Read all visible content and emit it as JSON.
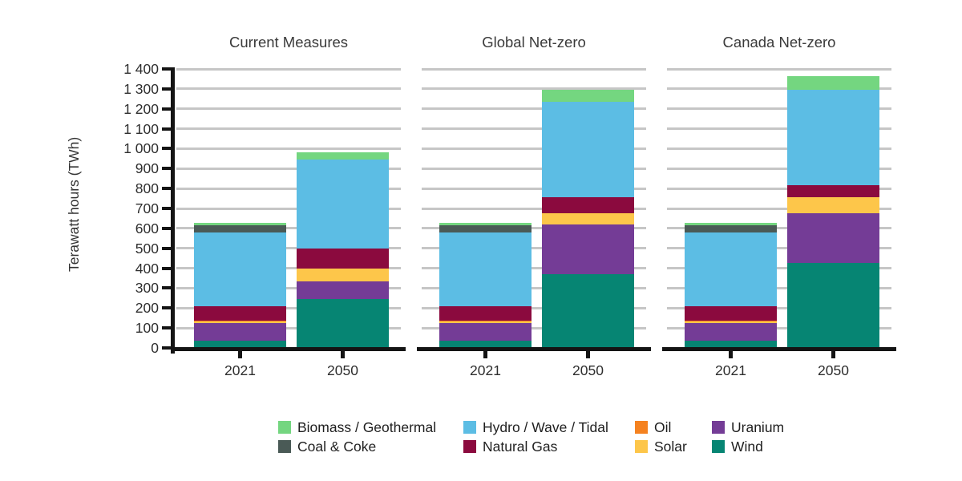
{
  "chart_data": {
    "type": "bar",
    "stacked": true,
    "title": "",
    "ylabel": "Terawatt hours (TWh)",
    "xlabel": "",
    "ylim": [
      0,
      1400
    ],
    "ytick_interval": 100,
    "ytick_labels_top_to_bottom": [
      "1 400",
      "1 300",
      "1 200",
      "1 100",
      "1 000",
      "900",
      "800",
      "700",
      "600",
      "500",
      "400",
      "300",
      "200",
      "100",
      "0"
    ],
    "grid": "horizontal-gray",
    "legend_position": "bottom",
    "categories": [
      "2021",
      "2050"
    ],
    "stack_order_top_to_bottom": [
      "Biomass / Geothermal",
      "Coal & Coke",
      "Hydro / Wave / Tidal",
      "Natural Gas",
      "Oil",
      "Solar",
      "Uranium",
      "Wind"
    ],
    "panels": [
      {
        "title": "Current Measures",
        "series": [
          {
            "name": "Biomass / Geothermal",
            "values": [
              13,
              35
            ]
          },
          {
            "name": "Coal & Coke",
            "values": [
              34,
              0
            ]
          },
          {
            "name": "Hydro / Wave / Tidal",
            "values": [
              372,
              445
            ]
          },
          {
            "name": "Natural Gas",
            "values": [
              73,
              100
            ]
          },
          {
            "name": "Oil",
            "values": [
              4,
              0
            ]
          },
          {
            "name": "Solar",
            "values": [
              6,
              65
            ]
          },
          {
            "name": "Uranium",
            "values": [
              91,
              90
            ]
          },
          {
            "name": "Wind",
            "values": [
              35,
              245
            ]
          }
        ]
      },
      {
        "title": "Global Net-zero",
        "series": [
          {
            "name": "Biomass / Geothermal",
            "values": [
              13,
              60
            ]
          },
          {
            "name": "Coal & Coke",
            "values": [
              34,
              0
            ]
          },
          {
            "name": "Hydro / Wave / Tidal",
            "values": [
              372,
              480
            ]
          },
          {
            "name": "Natural Gas",
            "values": [
              73,
              80
            ]
          },
          {
            "name": "Oil",
            "values": [
              4,
              0
            ]
          },
          {
            "name": "Solar",
            "values": [
              6,
              55
            ]
          },
          {
            "name": "Uranium",
            "values": [
              91,
              250
            ]
          },
          {
            "name": "Wind",
            "values": [
              35,
              370
            ]
          }
        ]
      },
      {
        "title": "Canada Net-zero",
        "series": [
          {
            "name": "Biomass / Geothermal",
            "values": [
              13,
              70
            ]
          },
          {
            "name": "Coal & Coke",
            "values": [
              34,
              0
            ]
          },
          {
            "name": "Hydro / Wave / Tidal",
            "values": [
              372,
              480
            ]
          },
          {
            "name": "Natural Gas",
            "values": [
              73,
              60
            ]
          },
          {
            "name": "Oil",
            "values": [
              4,
              0
            ]
          },
          {
            "name": "Solar",
            "values": [
              6,
              80
            ]
          },
          {
            "name": "Uranium",
            "values": [
              91,
              250
            ]
          },
          {
            "name": "Wind",
            "values": [
              35,
              425
            ]
          }
        ]
      }
    ],
    "colors": {
      "Biomass / Geothermal": "#74d680",
      "Coal & Coke": "#4a5a56",
      "Hydro / Wave / Tidal": "#5cbde4",
      "Natural Gas": "#8b0a3e",
      "Oil": "#f58220",
      "Solar": "#fdc64a",
      "Uranium": "#743c96",
      "Wind": "#068573"
    },
    "axis_color": "#141414",
    "gridline_color": "#c6c6c6",
    "legend_columns": [
      [
        "Biomass / Geothermal",
        "Coal & Coke"
      ],
      [
        "Hydro / Wave / Tidal",
        "Natural Gas"
      ],
      [
        "Oil",
        "Solar"
      ],
      [
        "Uranium",
        "Wind"
      ]
    ]
  }
}
